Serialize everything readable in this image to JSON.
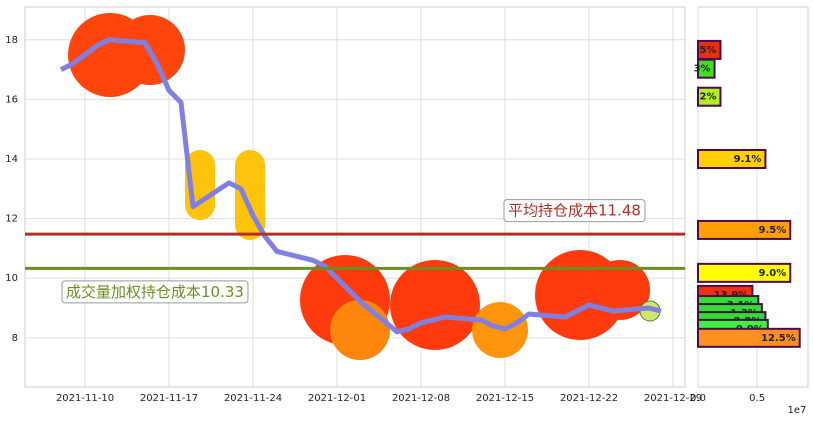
{
  "chart_data": [
    {
      "type": "line",
      "x": [
        "2021-11-08",
        "2021-11-09",
        "2021-11-10",
        "2021-11-11",
        "2021-11-12",
        "2021-11-15",
        "2021-11-16",
        "2021-11-17",
        "2021-11-18",
        "2021-11-19",
        "2021-11-22",
        "2021-11-23",
        "2021-11-24",
        "2021-11-25",
        "2021-11-26",
        "2021-11-29",
        "2021-11-30",
        "2021-12-01",
        "2021-12-02",
        "2021-12-03",
        "2021-12-06",
        "2021-12-07",
        "2021-12-08",
        "2021-12-09",
        "2021-12-10",
        "2021-12-13",
        "2021-12-14",
        "2021-12-15",
        "2021-12-16",
        "2021-12-17",
        "2021-12-20",
        "2021-12-21",
        "2021-12-22",
        "2021-12-23",
        "2021-12-24",
        "2021-12-27",
        "2021-12-28"
      ],
      "values": [
        17.0,
        17.2,
        17.5,
        17.8,
        18.0,
        17.9,
        17.2,
        16.3,
        15.9,
        12.4,
        13.2,
        13.0,
        12.1,
        11.4,
        10.9,
        10.6,
        10.4,
        10.0,
        9.6,
        9.2,
        8.2,
        8.3,
        8.5,
        8.6,
        8.7,
        8.6,
        8.4,
        8.3,
        8.5,
        8.8,
        8.7,
        8.9,
        9.1,
        9.0,
        8.9,
        9.0,
        8.9
      ],
      "color": "#8080e0",
      "xlim": [
        "2021-11-05",
        "2021-12-30"
      ],
      "xticks": [
        "2021-11-10",
        "2021-11-17",
        "2021-11-24",
        "2021-12-01",
        "2021-12-08",
        "2021-12-15",
        "2021-12-22",
        "2021-12-29"
      ],
      "ylim": [
        6.35,
        19.1
      ],
      "yticks": [
        8,
        10,
        12,
        14,
        16,
        18
      ],
      "grid": true,
      "hlines": [
        {
          "value": 11.48,
          "label": "平均持仓成本11.48",
          "color": "#b03028"
        },
        {
          "value": 10.33,
          "label": "成交量加权持仓成本10.33",
          "color": "#6b8e23"
        }
      ]
    },
    {
      "type": "barh",
      "y": [
        17.66,
        17.03,
        16.09,
        14.0,
        11.62,
        10.18,
        9.44,
        9.1,
        8.83,
        8.56,
        8.3,
        8.0
      ],
      "values": [
        0.19,
        0.14,
        0.19,
        0.57,
        0.78,
        0.78,
        0.46,
        0.51,
        0.54,
        0.57,
        0.59,
        0.86
      ],
      "value_labels": [
        "5%",
        "3%",
        "2%",
        "9.1%",
        "9.5%",
        "9.0%",
        "13.9%",
        "3.1%",
        "1.3%",
        "2.2%",
        "9.0%",
        "12.5%"
      ],
      "colors": [
        "#e83010",
        "#40e020",
        "#b0f020",
        "#ffd000",
        "#ffa000",
        "#ffff00",
        "#f03010",
        "#30e030",
        "#30e030",
        "#30e030",
        "#40f040",
        "#ff9020"
      ],
      "xlim": [
        0,
        0.93
      ],
      "xticks": [
        {
          "value": 0,
          "label": "0.0"
        },
        {
          "value": 0.5,
          "label": "0.5"
        }
      ],
      "ylim": [
        6.35,
        19.1
      ],
      "offset_label": "1e7",
      "grid": true
    }
  ]
}
